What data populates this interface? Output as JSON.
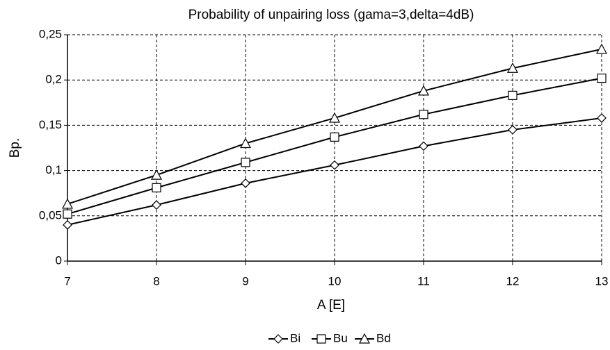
{
  "chart_data": {
    "type": "line",
    "title": "Probability of unpairing loss (gama=3,delta=4dB)",
    "xlabel": "A [E]",
    "ylabel": "Bp.",
    "x": [
      7,
      8,
      9,
      10,
      11,
      12,
      13
    ],
    "xlim": [
      7,
      13
    ],
    "xticks": [
      7,
      8,
      9,
      10,
      11,
      12,
      13
    ],
    "ylim": [
      0,
      0.25
    ],
    "yticks": [
      0,
      {
        "value": 0.05,
        "label": "0,05"
      },
      {
        "value": 0.1,
        "label": "0,1"
      },
      {
        "value": 0.15,
        "label": "0,15"
      },
      {
        "value": 0.2,
        "label": "0,2"
      },
      {
        "value": 0.25,
        "label": "0,25"
      }
    ],
    "grid": true,
    "legend": "bottom",
    "series": [
      {
        "name": "Bi",
        "color": "#000000",
        "marker": "diamond",
        "values": [
          0.04,
          0.062,
          0.086,
          0.106,
          0.127,
          0.145,
          0.158
        ]
      },
      {
        "name": "Bu",
        "color": "#000000",
        "marker": "square",
        "values": [
          0.052,
          0.081,
          0.109,
          0.137,
          0.162,
          0.183,
          0.202
        ]
      },
      {
        "name": "Bd",
        "color": "#000000",
        "marker": "triangle",
        "values": [
          0.063,
          0.095,
          0.13,
          0.158,
          0.188,
          0.213,
          0.234
        ]
      }
    ]
  }
}
